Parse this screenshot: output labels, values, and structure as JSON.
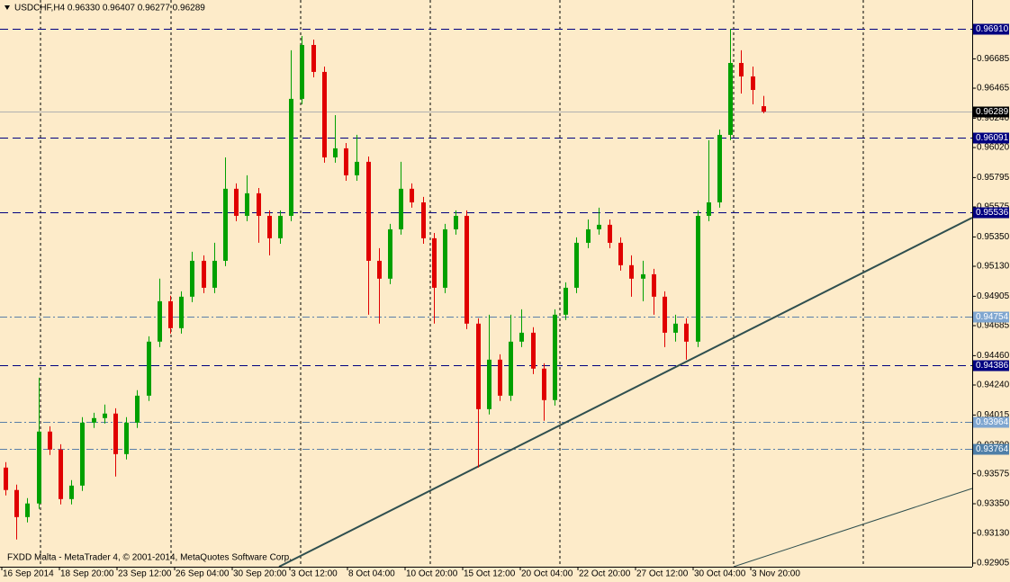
{
  "chart_data": {
    "type": "candlestick",
    "header": "USDCHF,H4  0.96330 0.96407 0.96277 0.96289",
    "footer": "FXDD Malta - MetaTrader 4, © 2001-2014, MetaQuotes Software Corp.",
    "up_color": "#00a000",
    "down_color": "#e00000",
    "ylim": [
      0.92878,
      0.97126
    ],
    "yticks": [
      {
        "value": 0.96685,
        "label": "0.96685"
      },
      {
        "value": 0.96465,
        "label": "0.96465"
      },
      {
        "value": 0.9624,
        "label": "0.96240"
      },
      {
        "value": 0.9602,
        "label": "0.96020"
      },
      {
        "value": 0.95795,
        "label": "0.95795"
      },
      {
        "value": 0.95575,
        "label": "0.95575"
      },
      {
        "value": 0.9535,
        "label": "0.95350"
      },
      {
        "value": 0.9513,
        "label": "0.95130"
      },
      {
        "value": 0.94905,
        "label": "0.94905"
      },
      {
        "value": 0.94685,
        "label": "0.94685"
      },
      {
        "value": 0.9446,
        "label": "0.94460"
      },
      {
        "value": 0.9424,
        "label": "0.94240"
      },
      {
        "value": 0.94015,
        "label": "0.94015"
      },
      {
        "value": 0.9379,
        "label": "0.93790"
      },
      {
        "value": 0.93575,
        "label": "0.93575"
      },
      {
        "value": 0.9335,
        "label": "0.93350"
      },
      {
        "value": 0.9313,
        "label": "0.93130"
      },
      {
        "value": 0.92905,
        "label": "0.92905"
      }
    ],
    "x_labels": [
      "16 Sep 2014",
      "18 Sep 20:00",
      "23 Sep 12:00",
      "26 Sep 04:00",
      "30 Sep 20:00",
      "3 Oct 12:00",
      "8 Oct 04:00",
      "10 Oct 20:00",
      "15 Oct 12:00",
      "20 Oct 04:00",
      "22 Oct 20:00",
      "27 Oct 12:00",
      "30 Oct 04:00",
      "3 Nov 20:00"
    ],
    "levels": [
      {
        "value": 0.9691,
        "label": "0.96910",
        "line_color": "#000080",
        "label_color": "#000080",
        "dash": "dashed"
      },
      {
        "value": 0.96289,
        "label": "0.96289",
        "line_color": "#b0b0b0",
        "label_color": "#000000",
        "dash": "solid"
      },
      {
        "value": 0.96091,
        "label": "0.96091",
        "line_color": "#000080",
        "label_color": "#000080",
        "dash": "dashed"
      },
      {
        "value": 0.95536,
        "label": "0.95536",
        "line_color": "#000080",
        "label_color": "#000080",
        "dash": "dashed"
      },
      {
        "value": 0.94754,
        "label": "0.94754",
        "line_color": "#5a7fa8",
        "label_color": "#7fa6d0",
        "dash": "dashdot"
      },
      {
        "value": 0.94386,
        "label": "0.94386",
        "line_color": "#000080",
        "label_color": "#000080",
        "dash": "dashed"
      },
      {
        "value": 0.93964,
        "label": "0.93964",
        "line_color": "#5a7fa8",
        "label_color": "#7fa6d0",
        "dash": "dashdot"
      },
      {
        "value": 0.93764,
        "label": "0.93764",
        "line_color": "#5a7fa8",
        "label_color": "#4f7fa8",
        "dash": "dashdot"
      }
    ],
    "candles": {
      "open": [
        0.93621,
        0.93453,
        0.9325,
        0.93352,
        0.93891,
        0.93756,
        0.93385,
        0.93486,
        0.93958,
        0.93992,
        0.94026,
        0.93722,
        0.93958,
        0.9416,
        0.94565,
        0.94868,
        0.94666,
        0.94902,
        0.95171,
        0.94969,
        0.95171,
        0.95711,
        0.95508,
        0.95677,
        0.95508,
        0.9534,
        0.95508,
        0.96385,
        0.96789,
        0.96587,
        0.95946,
        0.96014,
        0.95812,
        0.95913,
        0.95171,
        0.95037,
        0.95407,
        0.95711,
        0.95609,
        0.9534,
        0.94969,
        0.95407,
        0.95508,
        0.947,
        0.94059,
        0.9443,
        0.9416,
        0.94565,
        0.94632,
        0.94363,
        0.94127,
        0.94767,
        0.94969,
        0.95306,
        0.95407,
        0.95441,
        0.95306,
        0.95138,
        0.95037,
        0.9507,
        0.94902,
        0.94632,
        0.947,
        0.94565,
        0.95508,
        0.95609,
        0.96115,
        0.96654,
        0.96553,
        0.9633
      ],
      "high": [
        0.93662,
        0.93493,
        0.93392,
        0.94295,
        0.93931,
        0.93796,
        0.93527,
        0.93999,
        0.94032,
        0.94093,
        0.94066,
        0.93999,
        0.94201,
        0.94605,
        0.95037,
        0.94909,
        0.94942,
        0.95239,
        0.95212,
        0.95306,
        0.95946,
        0.95751,
        0.95812,
        0.95717,
        0.95549,
        0.95549,
        0.96749,
        0.96856,
        0.96829,
        0.96627,
        0.96263,
        0.96054,
        0.96115,
        0.95953,
        0.95266,
        0.95448,
        0.95913,
        0.95751,
        0.9565,
        0.9538,
        0.95448,
        0.95549,
        0.95549,
        0.9474,
        0.94767,
        0.9447,
        0.94767,
        0.94807,
        0.94673,
        0.94403,
        0.94807,
        0.9501,
        0.95347,
        0.95481,
        0.95569,
        0.95481,
        0.95347,
        0.95212,
        0.95171,
        0.95111,
        0.94942,
        0.94767,
        0.9474,
        0.95549,
        0.96075,
        0.96155,
        0.9691,
        0.96749,
        0.96627,
        0.96407
      ],
      "low": [
        0.93412,
        0.93082,
        0.9321,
        0.93311,
        0.93716,
        0.93345,
        0.93345,
        0.93446,
        0.93918,
        0.93951,
        0.93554,
        0.93682,
        0.93918,
        0.9412,
        0.94524,
        0.94625,
        0.94625,
        0.94861,
        0.94929,
        0.94929,
        0.95131,
        0.95468,
        0.95468,
        0.95306,
        0.95212,
        0.95299,
        0.95468,
        0.96344,
        0.96546,
        0.95906,
        0.95906,
        0.95771,
        0.95771,
        0.94767,
        0.947,
        0.94996,
        0.95367,
        0.95569,
        0.95299,
        0.947,
        0.94929,
        0.95367,
        0.94659,
        0.93621,
        0.94019,
        0.9412,
        0.9412,
        0.94524,
        0.94322,
        0.93972,
        0.94086,
        0.94727,
        0.94929,
        0.95266,
        0.95367,
        0.95266,
        0.95097,
        0.94902,
        0.94868,
        0.94767,
        0.94524,
        0.94565,
        0.9443,
        0.94524,
        0.95468,
        0.95569,
        0.96075,
        0.96425,
        0.96344,
        0.96277
      ],
      "close": [
        0.93453,
        0.9325,
        0.93352,
        0.93891,
        0.93756,
        0.93385,
        0.93486,
        0.93958,
        0.93992,
        0.94026,
        0.93722,
        0.93958,
        0.9416,
        0.94565,
        0.94868,
        0.94666,
        0.94902,
        0.95171,
        0.94969,
        0.95171,
        0.95711,
        0.95508,
        0.95677,
        0.95508,
        0.9534,
        0.95508,
        0.96385,
        0.96789,
        0.96587,
        0.95946,
        0.96014,
        0.95812,
        0.95913,
        0.95171,
        0.95037,
        0.95407,
        0.95711,
        0.95609,
        0.9534,
        0.94969,
        0.95407,
        0.95508,
        0.947,
        0.94059,
        0.9443,
        0.9416,
        0.94565,
        0.94632,
        0.94363,
        0.94127,
        0.94767,
        0.94969,
        0.95306,
        0.95407,
        0.95441,
        0.95306,
        0.95138,
        0.95037,
        0.9507,
        0.94902,
        0.94632,
        0.947,
        0.94565,
        0.95508,
        0.95609,
        0.96115,
        0.96654,
        0.96553,
        0.96452,
        0.96289
      ]
    }
  }
}
